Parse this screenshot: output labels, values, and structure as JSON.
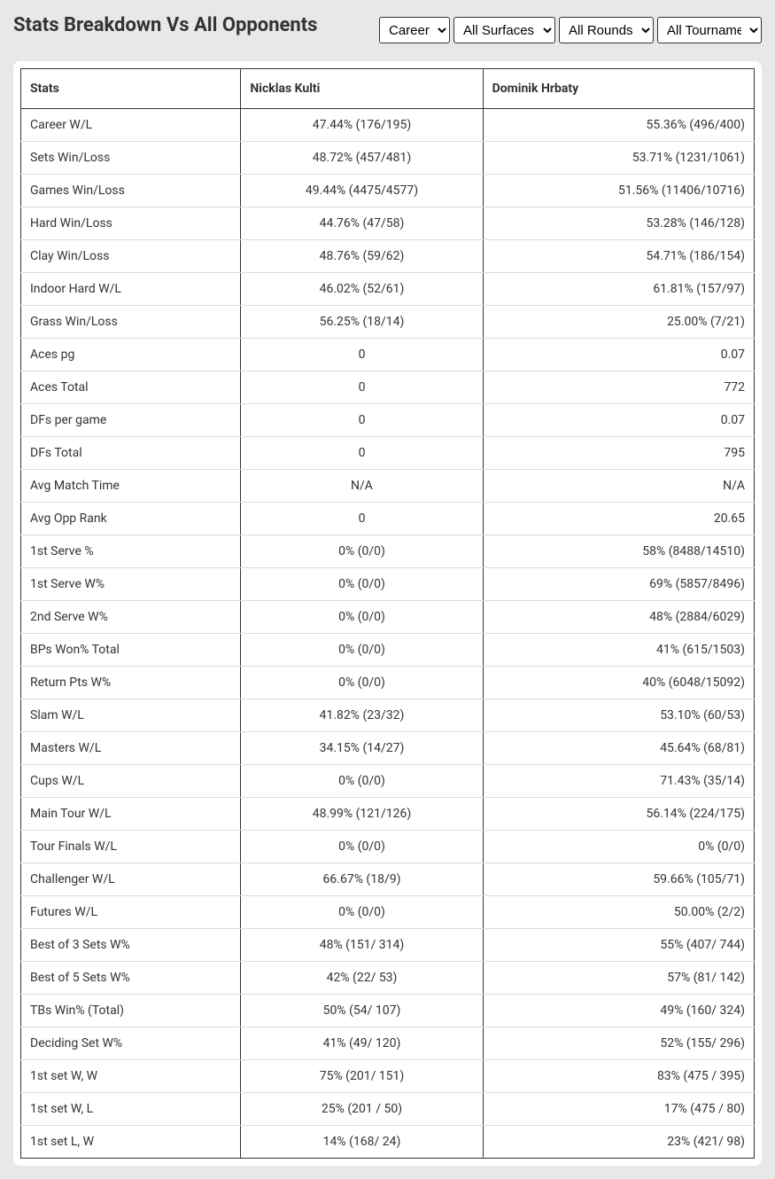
{
  "title": "Stats Breakdown Vs All Opponents",
  "filters": {
    "period": {
      "selected": "Career",
      "options": [
        "Career"
      ]
    },
    "surface": {
      "selected": "All Surfaces",
      "options": [
        "All Surfaces"
      ]
    },
    "rounds": {
      "selected": "All Rounds",
      "options": [
        "All Rounds"
      ]
    },
    "tournaments": {
      "selected": "All Tournaments",
      "options": [
        "All Tournaments"
      ]
    }
  },
  "table": {
    "headers": {
      "stats": "Stats",
      "player1": "Nicklas Kulti",
      "player2": "Dominik Hrbaty"
    },
    "rows": [
      {
        "stat": "Career W/L",
        "p1": "47.44% (176/195)",
        "p2": "55.36% (496/400)"
      },
      {
        "stat": "Sets Win/Loss",
        "p1": "48.72% (457/481)",
        "p2": "53.71% (1231/1061)"
      },
      {
        "stat": "Games Win/Loss",
        "p1": "49.44% (4475/4577)",
        "p2": "51.56% (11406/10716)"
      },
      {
        "stat": "Hard Win/Loss",
        "p1": "44.76% (47/58)",
        "p2": "53.28% (146/128)"
      },
      {
        "stat": "Clay Win/Loss",
        "p1": "48.76% (59/62)",
        "p2": "54.71% (186/154)"
      },
      {
        "stat": "Indoor Hard W/L",
        "p1": "46.02% (52/61)",
        "p2": "61.81% (157/97)"
      },
      {
        "stat": "Grass Win/Loss",
        "p1": "56.25% (18/14)",
        "p2": "25.00% (7/21)"
      },
      {
        "stat": "Aces pg",
        "p1": "0",
        "p2": "0.07"
      },
      {
        "stat": "Aces Total",
        "p1": "0",
        "p2": "772"
      },
      {
        "stat": "DFs per game",
        "p1": "0",
        "p2": "0.07"
      },
      {
        "stat": "DFs Total",
        "p1": "0",
        "p2": "795"
      },
      {
        "stat": "Avg Match Time",
        "p1": "N/A",
        "p2": "N/A"
      },
      {
        "stat": "Avg Opp Rank",
        "p1": "0",
        "p2": "20.65"
      },
      {
        "stat": "1st Serve %",
        "p1": "0% (0/0)",
        "p2": "58% (8488/14510)"
      },
      {
        "stat": "1st Serve W%",
        "p1": "0% (0/0)",
        "p2": "69% (5857/8496)"
      },
      {
        "stat": "2nd Serve W%",
        "p1": "0% (0/0)",
        "p2": "48% (2884/6029)"
      },
      {
        "stat": "BPs Won% Total",
        "p1": "0% (0/0)",
        "p2": "41% (615/1503)"
      },
      {
        "stat": "Return Pts W%",
        "p1": "0% (0/0)",
        "p2": "40% (6048/15092)"
      },
      {
        "stat": "Slam W/L",
        "p1": "41.82% (23/32)",
        "p2": "53.10% (60/53)"
      },
      {
        "stat": "Masters W/L",
        "p1": "34.15% (14/27)",
        "p2": "45.64% (68/81)"
      },
      {
        "stat": "Cups W/L",
        "p1": "0% (0/0)",
        "p2": "71.43% (35/14)"
      },
      {
        "stat": "Main Tour W/L",
        "p1": "48.99% (121/126)",
        "p2": "56.14% (224/175)"
      },
      {
        "stat": "Tour Finals W/L",
        "p1": "0% (0/0)",
        "p2": "0% (0/0)"
      },
      {
        "stat": "Challenger W/L",
        "p1": "66.67% (18/9)",
        "p2": "59.66% (105/71)"
      },
      {
        "stat": "Futures W/L",
        "p1": "0% (0/0)",
        "p2": "50.00% (2/2)"
      },
      {
        "stat": "Best of 3 Sets W%",
        "p1": "48% (151/ 314)",
        "p2": "55% (407/ 744)"
      },
      {
        "stat": "Best of 5 Sets W%",
        "p1": "42% (22/ 53)",
        "p2": "57% (81/ 142)"
      },
      {
        "stat": "TBs Win% (Total)",
        "p1": "50% (54/ 107)",
        "p2": "49% (160/ 324)"
      },
      {
        "stat": "Deciding Set W%",
        "p1": "41% (49/ 120)",
        "p2": "52% (155/ 296)"
      },
      {
        "stat": "1st set W, W",
        "p1": "75% (201/ 151)",
        "p2": "83% (475 / 395)"
      },
      {
        "stat": "1st set W, L",
        "p1": "25% (201 / 50)",
        "p2": "17% (475 / 80)"
      },
      {
        "stat": "1st set L, W",
        "p1": "14% (168/ 24)",
        "p2": "23% (421/ 98)"
      }
    ]
  }
}
